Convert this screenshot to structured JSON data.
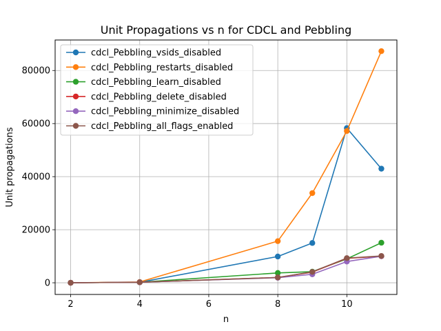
{
  "chart_data": {
    "type": "line",
    "title": "Unit Propagations vs n for CDCL and Pebbling",
    "xlabel": "n",
    "ylabel": "Unit propagations",
    "xlim": [
      1.55,
      11.45
    ],
    "ylim": [
      -4400,
      91500
    ],
    "xticks": [
      2,
      4,
      6,
      8,
      10
    ],
    "yticks": [
      0,
      20000,
      40000,
      60000,
      80000
    ],
    "grid": true,
    "legend_position": "top-left",
    "x": [
      2,
      4,
      8,
      9,
      10,
      11
    ],
    "series": [
      {
        "name": "cdcl_Pebbling_vsids_disabled",
        "color": "#1f77b4",
        "values": [
          0,
          200,
          9900,
          15000,
          58300,
          43000
        ]
      },
      {
        "name": "cdcl_Pebbling_restarts_disabled",
        "color": "#ff7f0e",
        "values": [
          0,
          300,
          15700,
          33800,
          57200,
          87300
        ]
      },
      {
        "name": "cdcl_Pebbling_learn_disabled",
        "color": "#2ca02c",
        "values": [
          0,
          200,
          3700,
          4200,
          9000,
          15100
        ]
      },
      {
        "name": "cdcl_Pebbling_delete_disabled",
        "color": "#d62728",
        "values": [
          0,
          200,
          2000,
          4000,
          9200,
          10000
        ]
      },
      {
        "name": "cdcl_Pebbling_minimize_disabled",
        "color": "#9467bd",
        "values": [
          0,
          200,
          1900,
          3200,
          8000,
          10000
        ]
      },
      {
        "name": "cdcl_Pebbling_all_flags_enabled",
        "color": "#8c564b",
        "values": [
          0,
          200,
          2000,
          4100,
          9300,
          10100
        ]
      }
    ]
  }
}
